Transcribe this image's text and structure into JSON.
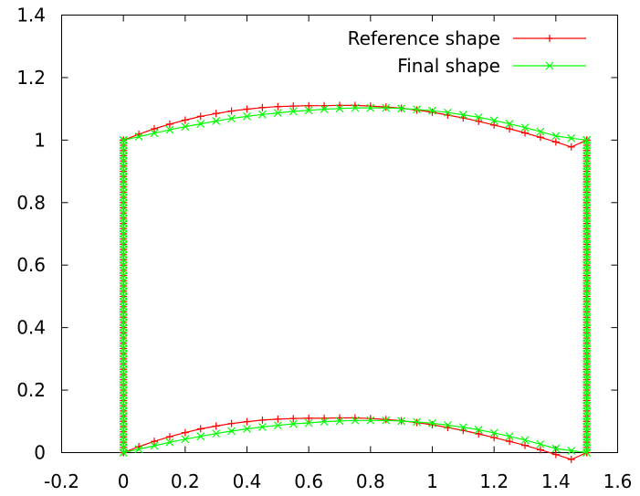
{
  "chart_data": {
    "type": "line",
    "title": "",
    "xlabel": "",
    "ylabel": "",
    "xlim": [
      -0.2,
      1.6
    ],
    "ylim": [
      0,
      1.4
    ],
    "xticks": [
      "-0.2",
      "0",
      "0.2",
      "0.4",
      "0.6",
      "0.8",
      "1",
      "1.2",
      "1.4",
      "1.6"
    ],
    "yticks": [
      "0",
      "0.2",
      "0.4",
      "0.6",
      "0.8",
      "1",
      "1.2",
      "1.4"
    ],
    "grid": false,
    "legend_position": "top-right",
    "series": [
      {
        "name": "Reference shape",
        "color": "#ff0000",
        "marker": "plus",
        "top_edge": [
          [
            0.0,
            1.0
          ],
          [
            0.05,
            1.019
          ],
          [
            0.1,
            1.036
          ],
          [
            0.15,
            1.051
          ],
          [
            0.2,
            1.064
          ],
          [
            0.25,
            1.076
          ],
          [
            0.3,
            1.085
          ],
          [
            0.35,
            1.093
          ],
          [
            0.4,
            1.099
          ],
          [
            0.45,
            1.104
          ],
          [
            0.5,
            1.107
          ],
          [
            0.55,
            1.109
          ],
          [
            0.6,
            1.11
          ],
          [
            0.65,
            1.11
          ],
          [
            0.7,
            1.111
          ],
          [
            0.75,
            1.111
          ],
          [
            0.8,
            1.109
          ],
          [
            0.85,
            1.106
          ],
          [
            0.9,
            1.102
          ],
          [
            0.95,
            1.096
          ],
          [
            1.0,
            1.089
          ],
          [
            1.05,
            1.08
          ],
          [
            1.1,
            1.071
          ],
          [
            1.15,
            1.06
          ],
          [
            1.2,
            1.048
          ],
          [
            1.25,
            1.036
          ],
          [
            1.3,
            1.023
          ],
          [
            1.35,
            1.009
          ],
          [
            1.4,
            0.994
          ],
          [
            1.45,
            0.978
          ],
          [
            1.5,
            1.0
          ]
        ],
        "bottom_edge": [
          [
            0.0,
            0.0
          ],
          [
            0.05,
            0.019
          ],
          [
            0.1,
            0.036
          ],
          [
            0.15,
            0.051
          ],
          [
            0.2,
            0.064
          ],
          [
            0.25,
            0.076
          ],
          [
            0.3,
            0.085
          ],
          [
            0.35,
            0.093
          ],
          [
            0.4,
            0.099
          ],
          [
            0.45,
            0.104
          ],
          [
            0.5,
            0.107
          ],
          [
            0.55,
            0.109
          ],
          [
            0.6,
            0.11
          ],
          [
            0.65,
            0.11
          ],
          [
            0.7,
            0.111
          ],
          [
            0.75,
            0.111
          ],
          [
            0.8,
            0.109
          ],
          [
            0.85,
            0.106
          ],
          [
            0.9,
            0.102
          ],
          [
            0.95,
            0.096
          ],
          [
            1.0,
            0.089
          ],
          [
            1.05,
            0.08
          ],
          [
            1.1,
            0.071
          ],
          [
            1.15,
            0.06
          ],
          [
            1.2,
            0.048
          ],
          [
            1.25,
            0.036
          ],
          [
            1.3,
            0.023
          ],
          [
            1.35,
            0.009
          ],
          [
            1.4,
            -0.006
          ],
          [
            1.45,
            -0.022
          ],
          [
            1.5,
            0.0
          ]
        ],
        "left_edge": [
          [
            0.0,
            0.0
          ],
          [
            0.0,
            1.0
          ]
        ],
        "right_edge": [
          [
            1.5,
            0.0
          ],
          [
            1.5,
            1.0
          ]
        ]
      },
      {
        "name": "Final shape",
        "color": "#00ff00",
        "marker": "cross",
        "top_edge": [
          [
            0.0,
            1.0
          ],
          [
            0.05,
            1.011
          ],
          [
            0.1,
            1.022
          ],
          [
            0.15,
            1.033
          ],
          [
            0.2,
            1.043
          ],
          [
            0.25,
            1.052
          ],
          [
            0.3,
            1.061
          ],
          [
            0.35,
            1.069
          ],
          [
            0.4,
            1.076
          ],
          [
            0.45,
            1.082
          ],
          [
            0.5,
            1.087
          ],
          [
            0.55,
            1.092
          ],
          [
            0.6,
            1.095
          ],
          [
            0.65,
            1.099
          ],
          [
            0.7,
            1.101
          ],
          [
            0.75,
            1.103
          ],
          [
            0.8,
            1.103
          ],
          [
            0.85,
            1.103
          ],
          [
            0.9,
            1.101
          ],
          [
            0.95,
            1.098
          ],
          [
            1.0,
            1.094
          ],
          [
            1.05,
            1.088
          ],
          [
            1.1,
            1.081
          ],
          [
            1.15,
            1.073
          ],
          [
            1.2,
            1.063
          ],
          [
            1.25,
            1.052
          ],
          [
            1.3,
            1.04
          ],
          [
            1.35,
            1.027
          ],
          [
            1.4,
            1.013
          ],
          [
            1.45,
            1.006
          ],
          [
            1.5,
            1.0
          ]
        ],
        "bottom_edge": [
          [
            0.0,
            0.0
          ],
          [
            0.05,
            0.011
          ],
          [
            0.1,
            0.022
          ],
          [
            0.15,
            0.033
          ],
          [
            0.2,
            0.043
          ],
          [
            0.25,
            0.052
          ],
          [
            0.3,
            0.061
          ],
          [
            0.35,
            0.069
          ],
          [
            0.4,
            0.076
          ],
          [
            0.45,
            0.082
          ],
          [
            0.5,
            0.087
          ],
          [
            0.55,
            0.092
          ],
          [
            0.6,
            0.095
          ],
          [
            0.65,
            0.099
          ],
          [
            0.7,
            0.101
          ],
          [
            0.75,
            0.103
          ],
          [
            0.8,
            0.103
          ],
          [
            0.85,
            0.103
          ],
          [
            0.9,
            0.101
          ],
          [
            0.95,
            0.098
          ],
          [
            1.0,
            0.094
          ],
          [
            1.05,
            0.088
          ],
          [
            1.1,
            0.081
          ],
          [
            1.15,
            0.073
          ],
          [
            1.2,
            0.063
          ],
          [
            1.25,
            0.052
          ],
          [
            1.3,
            0.04
          ],
          [
            1.35,
            0.027
          ],
          [
            1.4,
            0.013
          ],
          [
            1.45,
            0.006
          ],
          [
            1.5,
            0.0
          ]
        ],
        "left_edge": [
          [
            0.0,
            0.0
          ],
          [
            0.0,
            1.0
          ]
        ],
        "right_edge": [
          [
            1.5,
            0.0
          ],
          [
            1.5,
            1.0
          ]
        ]
      }
    ]
  }
}
